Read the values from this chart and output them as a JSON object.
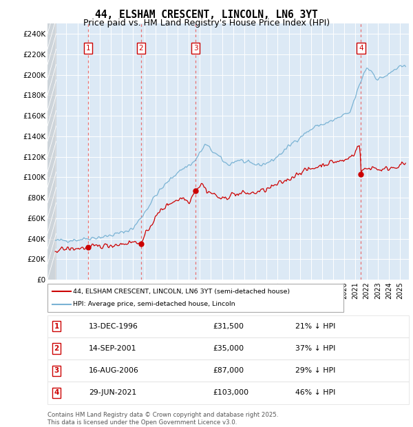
{
  "title": "44, ELSHAM CRESCENT, LINCOLN, LN6 3YT",
  "subtitle": "Price paid vs. HM Land Registry's House Price Index (HPI)",
  "title_fontsize": 10.5,
  "subtitle_fontsize": 9,
  "background_color": "#ffffff",
  "plot_bg_color": "#dce9f5",
  "transactions": [
    {
      "num": 1,
      "date": "13-DEC-1996",
      "price": 31500,
      "year": 1996.96,
      "pct": "21%",
      "dir": "↓"
    },
    {
      "num": 2,
      "date": "14-SEP-2001",
      "price": 35000,
      "year": 2001.71,
      "pct": "37%",
      "dir": "↓"
    },
    {
      "num": 3,
      "date": "16-AUG-2006",
      "price": 87000,
      "year": 2006.62,
      "pct": "29%",
      "dir": "↓"
    },
    {
      "num": 4,
      "date": "29-JUN-2021",
      "price": 103000,
      "year": 2021.49,
      "pct": "46%",
      "dir": "↓"
    }
  ],
  "legend_label_red": "44, ELSHAM CRESCENT, LINCOLN, LN6 3YT (semi-detached house)",
  "legend_label_blue": "HPI: Average price, semi-detached house, Lincoln",
  "footer": "Contains HM Land Registry data © Crown copyright and database right 2025.\nThis data is licensed under the Open Government Licence v3.0.",
  "ylim": [
    0,
    250000
  ],
  "yticks": [
    0,
    20000,
    40000,
    60000,
    80000,
    100000,
    120000,
    140000,
    160000,
    180000,
    200000,
    220000,
    240000
  ],
  "ylabels": [
    "£0",
    "£20K",
    "£40K",
    "£60K",
    "£80K",
    "£100K",
    "£120K",
    "£140K",
    "£160K",
    "£180K",
    "£200K",
    "£220K",
    "£240K"
  ],
  "red_color": "#cc0000",
  "blue_color": "#7ab3d4",
  "hatch_color": "#b0b0b0"
}
